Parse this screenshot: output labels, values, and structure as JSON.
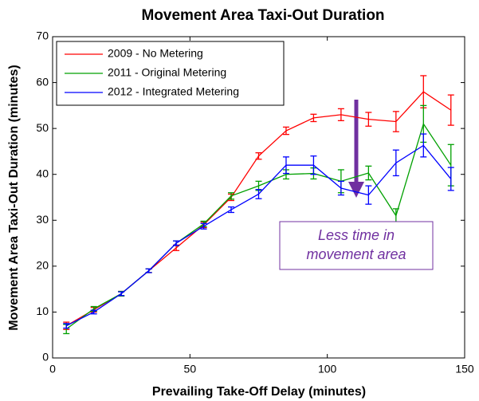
{
  "chart_data": {
    "type": "line",
    "title": "Movement Area Taxi-Out Duration",
    "x_label": "Prevailing Take-Off Delay (minutes)",
    "y_label": "Movement Area Taxi-Out Duration (minutes)",
    "x": [
      5,
      15,
      25,
      35,
      45,
      55,
      65,
      75,
      85,
      95,
      105,
      115,
      125,
      135,
      145
    ],
    "series": [
      {
        "name": "2009 - No Metering",
        "color": "#ff0000",
        "values": [
          7,
          10.5,
          14,
          19,
          24,
          29,
          35,
          44,
          49.5,
          52.3,
          53,
          52,
          51.5,
          58,
          54
        ],
        "errors": [
          0.8,
          0.5,
          0.5,
          0.4,
          0.6,
          0.6,
          0.7,
          0.7,
          0.8,
          0.8,
          1.3,
          1.5,
          2.2,
          3.5,
          3.3
        ]
      },
      {
        "name": "2011 - Original Metering",
        "color": "#00a000",
        "values": [
          6.3,
          10.7,
          14,
          19,
          25,
          29.2,
          35.3,
          37.5,
          40,
          40.2,
          38.5,
          40.3,
          31,
          51,
          42
        ],
        "errors": [
          1,
          0.5,
          0.5,
          0.4,
          0.5,
          0.6,
          0.7,
          1,
          1,
          1.2,
          2.5,
          1.5,
          1.5,
          4,
          4.5
        ]
      },
      {
        "name": "2012 - Integrated Metering",
        "color": "#0000ff",
        "values": [
          7,
          10,
          14,
          19,
          25,
          28.7,
          32.3,
          35.7,
          42,
          42,
          37,
          35.5,
          42.5,
          46.3,
          39
        ],
        "errors": [
          0.5,
          0.4,
          0.4,
          0.4,
          0.5,
          0.6,
          0.6,
          1,
          1.8,
          2,
          1.5,
          2,
          2.8,
          2.5,
          2.5
        ]
      }
    ],
    "xlim": [
      0,
      150
    ],
    "xticks": [
      0,
      50,
      100,
      150
    ],
    "ylim": [
      0,
      70
    ],
    "yticks": [
      0,
      10,
      20,
      30,
      40,
      50,
      60,
      70
    ],
    "legend": "upper left",
    "annotation": {
      "lines": [
        "Less time in",
        "movement area"
      ],
      "color": "#7030a0"
    }
  }
}
